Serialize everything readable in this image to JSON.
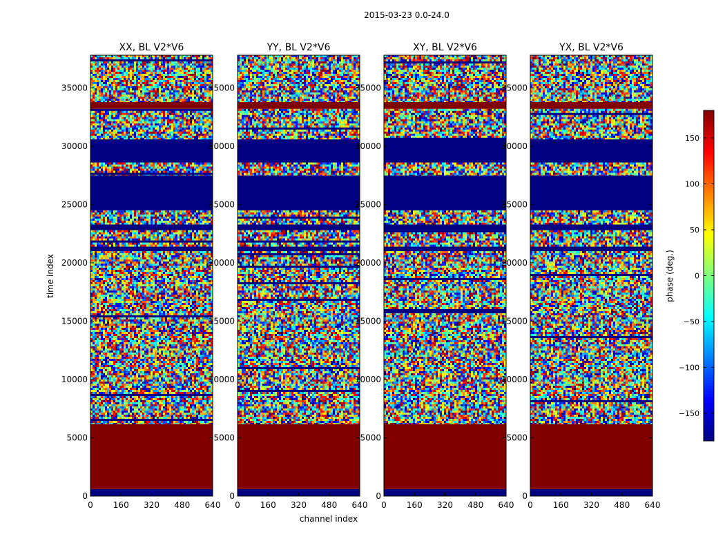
{
  "figure_title": "2015-03-23 0.0-24.0",
  "chart_data": {
    "type": "heatmap",
    "suptitle": "2015-03-23 0.0-24.0",
    "xlabel": "channel index",
    "ylabel": "time index",
    "xlim": [
      0,
      640
    ],
    "ylim": [
      0,
      37800
    ],
    "x_ticks": [
      0,
      160,
      320,
      480,
      640
    ],
    "y_ticks": [
      0,
      5000,
      10000,
      15000,
      20000,
      25000,
      30000,
      35000
    ],
    "panels": [
      {
        "title": "XX, BL V2*V6",
        "polarization": "XX"
      },
      {
        "title": "YY, BL V2*V6",
        "polarization": "YY"
      },
      {
        "title": "XY, BL V2*V6",
        "polarization": "XY"
      },
      {
        "title": "YX, BL V2*V6",
        "polarization": "YX"
      }
    ],
    "colorbar": {
      "label": "phase (deg.)",
      "range": [
        -180,
        180
      ],
      "ticks": [
        150,
        100,
        50,
        0,
        -50,
        -100,
        -150
      ],
      "colormap": "jet"
    },
    "bands": [
      {
        "y": [
          0,
          600
        ],
        "fill": -180
      },
      {
        "y": [
          600,
          6200
        ],
        "fill": 180
      },
      {
        "y": [
          6200,
          21000
        ],
        "fill": "noise"
      },
      {
        "y": [
          21000,
          21400
        ],
        "fill": -180
      },
      {
        "y": [
          21400,
          22800
        ],
        "fill": "noise"
      },
      {
        "y": [
          22800,
          23300
        ],
        "fill": -180
      },
      {
        "y": [
          23300,
          24500
        ],
        "fill": "noise"
      },
      {
        "y": [
          24500,
          27500
        ],
        "fill": -180
      },
      {
        "y": [
          27500,
          28600
        ],
        "fill": "noise"
      },
      {
        "y": [
          28600,
          30600
        ],
        "fill": -180
      },
      {
        "y": [
          30600,
          33200
        ],
        "fill": "noise"
      },
      {
        "y": [
          33200,
          33800
        ],
        "fill": 180
      },
      {
        "y": [
          33800,
          37800
        ],
        "fill": "noise"
      }
    ]
  }
}
